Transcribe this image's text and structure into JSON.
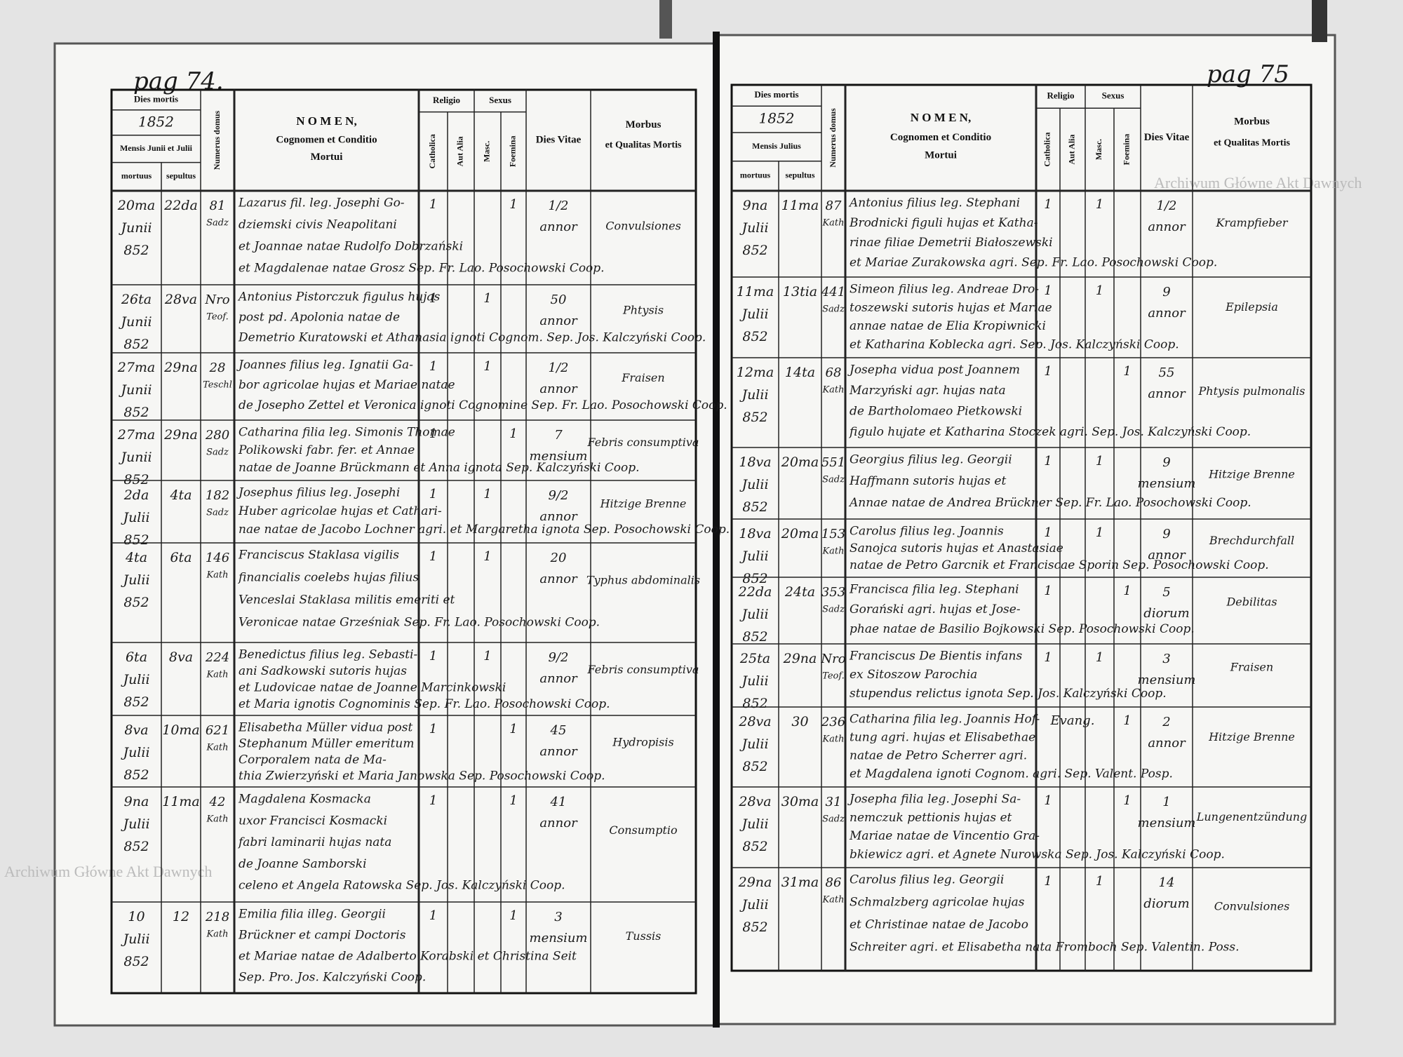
{
  "watermarks": [
    "Archiwum Główne Akt Dawnych",
    "Archiwum Główne Akt Dawnych"
  ],
  "pages": [
    {
      "page_label": "pag 74.",
      "header": {
        "dies_mortis": "Dies mortis",
        "year": "1852",
        "mensis": "Mensis Junii et Julii",
        "mortuus": "mortuus",
        "sepultus": "sepultus",
        "domus": "Numerus domus",
        "nomen": "N O M E N,",
        "nomen_sub": "Cognomen et Conditio",
        "nomen_sub2": "Mortui",
        "religio": "Religio",
        "catholica": "Catholica",
        "alia": "Aut Alia",
        "sexus": "Sexus",
        "masc": "Masc.",
        "foemina": "Foemina",
        "vitae": "Dies Vitae",
        "morbus": "Morbus",
        "morbus_sub": "et Qualitas Mortis"
      },
      "rows": [
        {
          "mortuus": [
            "20ma",
            "Junii",
            "852"
          ],
          "sepultus": "22da",
          "domus": [
            "81",
            "Sadz"
          ],
          "nomen": [
            "Lazarus fil. leg. Josephi Go-",
            "dziemski civis Neapolitani",
            "et Joannae natae Rudolfo Dobrzański",
            "et Magdalenae natae Grosz  Sep. Fr. Lao. Posochowski Coop."
          ],
          "catholica": "1",
          "foemina": "1",
          "vitae": [
            "1/2",
            "annor"
          ],
          "morbus": "Convulsiones"
        },
        {
          "mortuus": [
            "26ta",
            "Junii",
            "852"
          ],
          "sepultus": "28va",
          "domus": [
            "Nro",
            "Teof."
          ],
          "nomen": [
            "Antonius Pistorczuk figulus hujas",
            "post pd. Apolonia natae de",
            "Demetrio Kuratowski et Athanasia ignoti Cognom.  Sep. Jos. Kalczyński Coop."
          ],
          "catholica": "1",
          "masc": "1",
          "vitae": [
            "50",
            "annor"
          ],
          "morbus": "Phtysis"
        },
        {
          "mortuus": [
            "27ma",
            "Junii",
            "852"
          ],
          "sepultus": "29na",
          "domus": [
            "28",
            "Teschl"
          ],
          "nomen": [
            "Joannes filius leg. Ignatii Ga-",
            "bor agricolae hujas et Mariae natae",
            "de Josepho Zettel et Veronica ignoti Cognomine  Sep. Fr. Lao. Posochowski Coop."
          ],
          "catholica": "1",
          "masc": "1",
          "vitae": [
            "1/2",
            "annor"
          ],
          "morbus": "Fraisen"
        },
        {
          "mortuus": [
            "27ma",
            "Junii",
            "852"
          ],
          "sepultus": "29na",
          "domus": [
            "280",
            "Sadz"
          ],
          "nomen": [
            "Catharina filia leg. Simonis Thomae",
            "Polikowski fabr. fer. et Annae",
            "natae de Joanne Brückmann et Anna ignota  Sep. Kalczyński Coop."
          ],
          "catholica": "1",
          "foemina": "1",
          "vitae": [
            "7",
            "mensium"
          ],
          "morbus": "Febris consumptiva"
        },
        {
          "mortuus": [
            "2da",
            "Julii",
            "852"
          ],
          "sepultus": "4ta",
          "domus": [
            "182",
            "Sadz"
          ],
          "nomen": [
            "Josephus filius leg. Josephi",
            "Huber agricolae hujas et Cathari-",
            "nae natae de Jacobo Lochner agri. et Margaretha ignota  Sep. Posochowski Coop."
          ],
          "catholica": "1",
          "masc": "1",
          "vitae": [
            "9/2",
            "annor"
          ],
          "morbus": "Hitzige Brenne"
        },
        {
          "mortuus": [
            "4ta",
            "Julii",
            "852"
          ],
          "sepultus": "6ta",
          "domus": [
            "146",
            "Kath"
          ],
          "nomen": [
            "Franciscus Staklasa vigilis",
            "financialis coelebs hujas filius",
            "Venceslai Staklasa militis emeriti et",
            "Veronicae natae Grześniak  Sep. Fr. Lao. Posochowski Coop."
          ],
          "catholica": "1",
          "masc": "1",
          "vitae": [
            "20",
            "annor"
          ],
          "morbus": "Typhus abdominalis"
        },
        {
          "mortuus": [
            "6ta",
            "Julii",
            "852"
          ],
          "sepultus": "8va",
          "domus": [
            "224",
            "Kath"
          ],
          "nomen": [
            "Benedictus filius leg. Sebasti-",
            "ani Sadkowski sutoris hujas",
            "et Ludovicae natae de Joanne Marcinkowski",
            "et Maria ignotis Cognominis  Sep. Fr. Lao. Posochowski Coop."
          ],
          "catholica": "1",
          "masc": "1",
          "vitae": [
            "9/2",
            "annor"
          ],
          "morbus": "Febris consumptiva"
        },
        {
          "mortuus": [
            "8va",
            "Julii",
            "852"
          ],
          "sepultus": "10ma",
          "domus": [
            "621",
            "Kath"
          ],
          "nomen": [
            "Elisabetha Müller vidua post",
            "Stephanum Müller emeritum",
            "Corporalem nata de Ma-",
            "thia Zwierzyński et Maria Janowska  Sep. Posochowski Coop."
          ],
          "catholica": "1",
          "foemina": "1",
          "vitae": [
            "45",
            "annor"
          ],
          "morbus": "Hydropisis"
        },
        {
          "mortuus": [
            "9na",
            "Julii",
            "852"
          ],
          "sepultus": "11ma",
          "domus": [
            "42",
            "Kath"
          ],
          "nomen": [
            "Magdalena Kosmacka",
            "uxor Francisci Kosmacki",
            "fabri laminarii hujas nata",
            "de Joanne Samborski",
            "celeno et Angela Ratowska  Sep. Jos. Kalczyński Coop."
          ],
          "catholica": "1",
          "foemina": "1",
          "vitae": [
            "41",
            "annor"
          ],
          "morbus": "Consumptio"
        },
        {
          "mortuus": [
            "10",
            "Julii",
            "852"
          ],
          "sepultus": "12",
          "domus": [
            "218",
            "Kath"
          ],
          "nomen": [
            "Emilia filia illeg. Georgii",
            "Brückner et campi Doctoris",
            "et Mariae natae de Adalberto Korabski et Christina Seit",
            "Sep. Pro. Jos. Kalczyński Coop."
          ],
          "catholica": "1",
          "foemina": "1",
          "vitae": [
            "3",
            "mensium"
          ],
          "morbus": "Tussis"
        }
      ]
    },
    {
      "page_label": "pag 75",
      "header": {
        "dies_mortis": "Dies mortis",
        "year": "1852",
        "mensis": "Mensis Julius",
        "mortuus": "mortuus",
        "sepultus": "sepultus",
        "domus": "Numerus domus",
        "nomen": "N O M E N,",
        "nomen_sub": "Cognomen et Conditio",
        "nomen_sub2": "Mortui",
        "religio": "Religio",
        "catholica": "Catholica",
        "alia": "Aut Alia",
        "sexus": "Sexus",
        "masc": "Masc.",
        "foemina": "Foemina",
        "vitae": "Dies Vitae",
        "morbus": "Morbus",
        "morbus_sub": "et Qualitas Mortis"
      },
      "rows": [
        {
          "mortuus": [
            "9na",
            "Julii",
            "852"
          ],
          "sepultus": "11ma",
          "domus": [
            "87",
            "Kath"
          ],
          "nomen": [
            "Antonius filius leg. Stephani",
            "Brodnicki figuli hujas et Katha-",
            "rinae filiae Demetrii Białoszewski",
            "et Mariae Zurakowska agri.  Sep. Fr. Lao. Posochowski Coop."
          ],
          "catholica": "1",
          "masc": "1",
          "vitae": [
            "1/2",
            "annor"
          ],
          "morbus": "Krampfieber"
        },
        {
          "mortuus": [
            "11ma",
            "Julii",
            "852"
          ],
          "sepultus": "13tia",
          "domus": [
            "441",
            "Sadz"
          ],
          "nomen": [
            "Simeon filius leg. Andreae Dro-",
            "toszewski sutoris hujas et Mariae",
            "annae natae de Elia Kropiwnicki",
            "et Katharina Koblecka agri.  Sep. Jos. Kalczyński Coop."
          ],
          "catholica": "1",
          "masc": "1",
          "vitae": [
            "9",
            "annor"
          ],
          "morbus": "Epilepsia"
        },
        {
          "mortuus": [
            "12ma",
            "Julii",
            "852"
          ],
          "sepultus": "14ta",
          "domus": [
            "68",
            "Kath"
          ],
          "nomen": [
            "Josepha vidua post Joannem",
            "Marzyński agr. hujas nata",
            "de Bartholomaeo Pietkowski",
            "figulo hujate et Katharina Stoczek agri.  Sep. Jos. Kalczyński Coop."
          ],
          "catholica": "1",
          "foemina": "1",
          "vitae": [
            "55",
            "annor"
          ],
          "morbus": "Phtysis pulmonalis"
        },
        {
          "mortuus": [
            "18va",
            "Julii",
            "852"
          ],
          "sepultus": "20ma",
          "domus": [
            "551",
            "Sadz"
          ],
          "nomen": [
            "Georgius filius leg. Georgii",
            "Haffmann sutoris hujas et",
            "Annae natae de Andrea Brückner  Sep. Fr. Lao. Posochowski Coop."
          ],
          "catholica": "1",
          "masc": "1",
          "vitae": [
            "9",
            "mensium"
          ],
          "morbus": "Hitzige Brenne"
        },
        {
          "mortuus": [
            "18va",
            "Julii",
            "852"
          ],
          "sepultus": "20ma",
          "domus": [
            "153",
            "Kath"
          ],
          "nomen": [
            "Carolus filius leg. Joannis",
            "Sanojca sutoris hujas et Anastasiae",
            "natae de Petro Garcnik et Franciscae Sporin  Sep. Posochowski Coop."
          ],
          "catholica": "1",
          "masc": "1",
          "vitae": [
            "9",
            "annor"
          ],
          "morbus": "Brechdurchfall"
        },
        {
          "mortuus": [
            "22da",
            "Julii",
            "852"
          ],
          "sepultus": "24ta",
          "domus": [
            "353",
            "Sadz"
          ],
          "nomen": [
            "Francisca filia leg. Stephani",
            "Gorański agri. hujas et Jose-",
            "phae natae de Basilio Bojkowski  Sep. Posochowski Coop."
          ],
          "catholica": "1",
          "foemina": "1",
          "vitae": [
            "5",
            "diorum"
          ],
          "morbus": "Debilitas"
        },
        {
          "mortuus": [
            "25ta",
            "Julii",
            "852"
          ],
          "sepultus": "29na",
          "domus": [
            "Nro",
            "Teof."
          ],
          "nomen": [
            "Franciscus De Bientis infans",
            "ex Sitoszow Parochia",
            "stupendus relictus ignota  Sep. Jos. Kalczyński Coop."
          ],
          "catholica": "1",
          "masc": "1",
          "vitae": [
            "3",
            "mensium"
          ],
          "morbus": "Fraisen"
        },
        {
          "mortuus": [
            "28va",
            "Julii",
            "852"
          ],
          "sepultus": "30",
          "domus": [
            "236",
            "Kath"
          ],
          "nomen": [
            "Catharina filia leg. Joannis Hof-",
            "tung agri. hujas et Elisabethae",
            "natae de Petro Scherrer agri.",
            "et Magdalena ignoti Cognom. agri.  Sep. Valent. Posp."
          ],
          "alia": "Evang.",
          "foemina": "1",
          "vitae": [
            "2",
            "annor"
          ],
          "morbus": "Hitzige Brenne"
        },
        {
          "mortuus": [
            "28va",
            "Julii",
            "852"
          ],
          "sepultus": "30ma",
          "domus": [
            "31",
            "Sadz"
          ],
          "nomen": [
            "Josepha filia leg. Josephi Sa-",
            "nemczuk pettionis hujas et",
            "Mariae natae de Vincentio Gra-",
            "bkiewicz agri. et Agnete Nurowska  Sep. Jos. Kalczyński Coop."
          ],
          "catholica": "1",
          "foemina": "1",
          "vitae": [
            "1",
            "mensium"
          ],
          "morbus": "Lungenentzündung"
        },
        {
          "mortuus": [
            "29na",
            "Julii",
            "852"
          ],
          "sepultus": "31ma",
          "domus": [
            "86",
            "Kath"
          ],
          "nomen": [
            "Carolus filius leg. Georgii",
            "Schmalzberg agricolae hujas",
            "et Christinae natae de Jacobo",
            "Schreiter agri. et Elisabetha nata Fromboch  Sep. Valentin. Poss."
          ],
          "catholica": "1",
          "masc": "1",
          "vitae": [
            "14",
            "diorum"
          ],
          "morbus": "Convulsiones"
        }
      ]
    }
  ]
}
